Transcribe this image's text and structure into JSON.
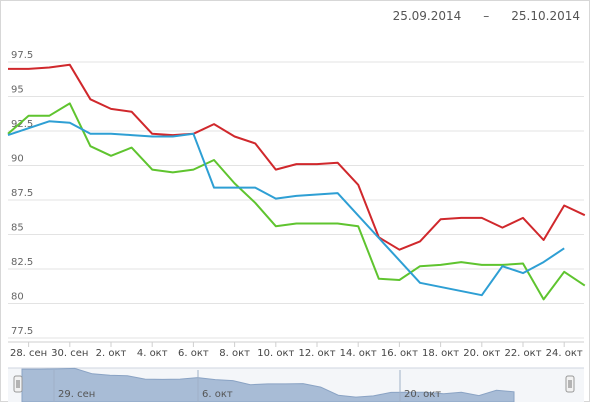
{
  "header": {
    "date_from": "25.09.2014",
    "date_sep": "–",
    "date_to": "25.10.2014"
  },
  "navigator": {
    "labels": [
      "29. сен",
      "6. окт",
      "20. окт"
    ]
  },
  "colors": {
    "series_red": "#d0282c",
    "series_green": "#5fc42f",
    "series_blue": "#2e9fd4",
    "grid": "#e3e3e3",
    "navigator_fill": "#a8bcd6"
  },
  "chart_data": {
    "type": "line",
    "x": [
      "27. сен",
      "28. сен",
      "29. сен",
      "30. сен",
      "1. окт",
      "2. окт",
      "3. окт",
      "4. окт",
      "5. окт",
      "6. окт",
      "7. окт",
      "8. окт",
      "9. окт",
      "10. окт",
      "11. окт",
      "12. окт",
      "13. окт",
      "14. окт",
      "15. окт",
      "16. окт",
      "17. окт",
      "18. окт",
      "19. окт",
      "20. окт",
      "21. окт",
      "22. окт",
      "23. окт",
      "24. окт",
      "25. окт"
    ],
    "x_tick_labels": [
      "28. сен",
      "30. сен",
      "2. окт",
      "4. окт",
      "6. окт",
      "8. окт",
      "10. окт",
      "12. окт",
      "14. окт",
      "16. окт",
      "18. окт",
      "20. окт",
      "22. окт",
      "24. окт"
    ],
    "y_tick_labels": [
      "77.5",
      "80",
      "82.5",
      "85",
      "87.5",
      "90",
      "92.5",
      "95",
      "97.5"
    ],
    "ylim": [
      77.5,
      97.5
    ],
    "grid": true,
    "series": [
      {
        "values": [
          97.0,
          97.0,
          97.1,
          97.3,
          94.8,
          94.1,
          93.9,
          92.3,
          92.2,
          92.3,
          93.0,
          92.1,
          91.6,
          89.7,
          90.1,
          90.1,
          90.2,
          88.6,
          84.8,
          83.9,
          84.5,
          86.1,
          86.2,
          86.2,
          85.5,
          86.2,
          84.6,
          87.1,
          86.4
        ]
      },
      {
        "values": [
          92.3,
          93.6,
          93.6,
          94.5,
          91.4,
          90.7,
          91.3,
          89.7,
          89.5,
          89.7,
          90.4,
          88.7,
          87.3,
          85.6,
          85.8,
          85.8,
          85.8,
          85.6,
          81.8,
          81.7,
          82.7,
          82.8,
          83.0,
          82.8,
          82.8,
          82.9,
          80.3,
          82.3,
          81.3
        ]
      },
      {
        "values": [
          92.2,
          92.7,
          93.2,
          93.1,
          92.3,
          92.3,
          92.2,
          92.1,
          92.1,
          92.3,
          88.4,
          88.4,
          88.4,
          87.6,
          87.8,
          87.9,
          88.0,
          null,
          null,
          null,
          81.5,
          null,
          null,
          80.6,
          82.7,
          82.2,
          83.0,
          84.0,
          null
        ]
      }
    ]
  }
}
